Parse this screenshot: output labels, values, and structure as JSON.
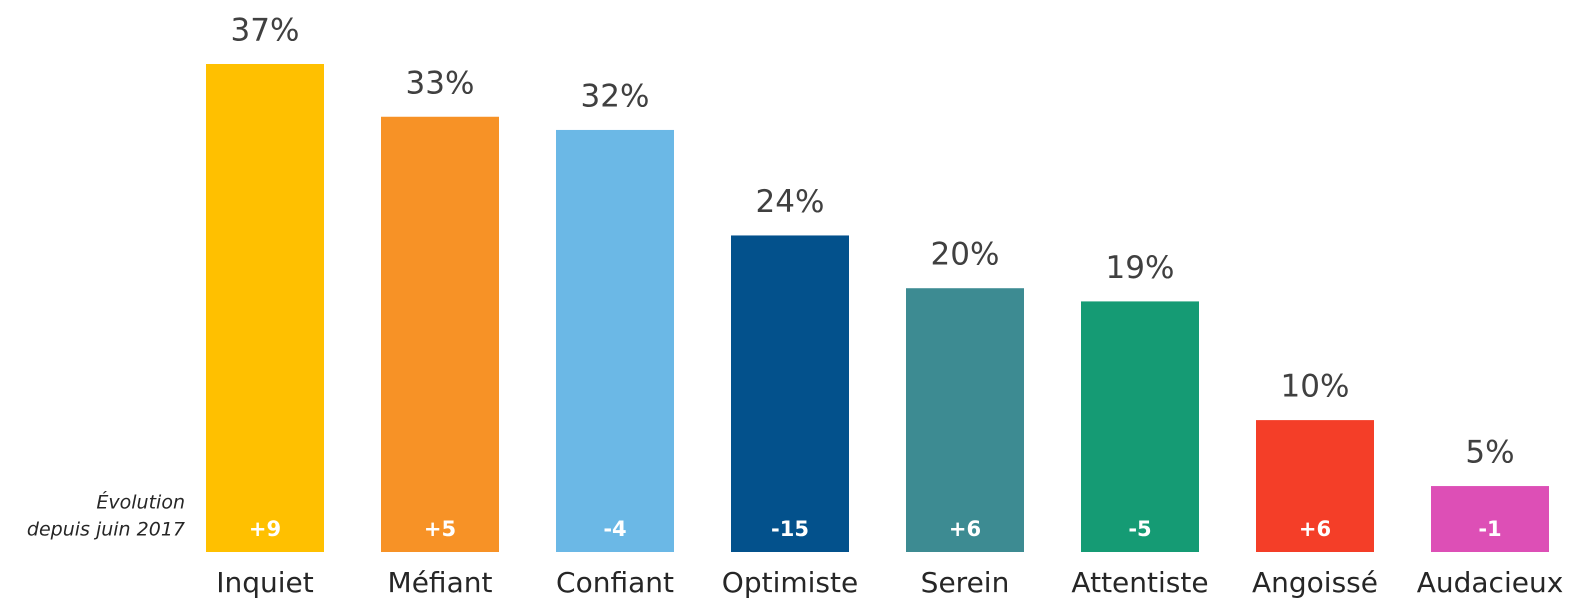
{
  "chart_data": {
    "type": "bar",
    "categories": [
      "Inquiet",
      "Méfiant",
      "Confiant",
      "Optimiste",
      "Serein",
      "Attentiste",
      "Angoissé",
      "Audacieux"
    ],
    "values": [
      37,
      33,
      32,
      24,
      20,
      19,
      10,
      5
    ],
    "value_labels": [
      "37%",
      "33%",
      "32%",
      "24%",
      "20%",
      "19%",
      "10%",
      "5%"
    ],
    "colors": [
      "#FFC000",
      "#F79226",
      "#6BB8E6",
      "#03518C",
      "#3D8B92",
      "#159B74",
      "#F43E28",
      "#DD4FB6"
    ],
    "evolution": {
      "label": [
        "Évolution",
        "depuis juin 2017"
      ],
      "values": [
        9,
        5,
        -4,
        -15,
        6,
        -5,
        6,
        -1
      ],
      "value_labels": [
        "+9",
        "+5",
        "-4",
        "-15",
        "+6",
        "-5",
        "+6",
        "-1"
      ]
    }
  }
}
